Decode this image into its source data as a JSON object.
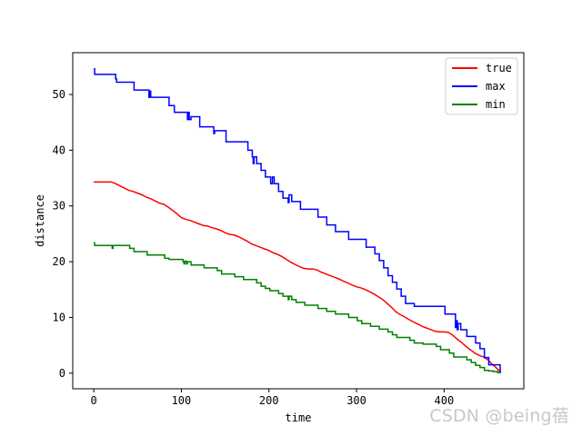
{
  "watermark": "CSDN @being蓓",
  "chart_data": {
    "type": "line",
    "xlabel": "time",
    "ylabel": "distance",
    "xlim": [
      -24,
      491
    ],
    "ylim": [
      -2.8,
      57.5
    ],
    "xticks": [
      0,
      100,
      200,
      300,
      400
    ],
    "yticks": [
      0,
      10,
      20,
      30,
      40,
      50
    ],
    "legend_position": "top-right",
    "grid": false,
    "series": [
      {
        "name": "true",
        "color": "#ff0000",
        "step": false,
        "x": [
          0,
          8,
          15,
          20,
          25,
          30,
          35,
          40,
          45,
          50,
          55,
          60,
          65,
          70,
          75,
          80,
          85,
          90,
          95,
          100,
          105,
          110,
          115,
          120,
          125,
          130,
          135,
          140,
          145,
          150,
          155,
          160,
          165,
          170,
          175,
          180,
          185,
          190,
          195,
          200,
          205,
          210,
          215,
          220,
          225,
          230,
          235,
          240,
          245,
          250,
          255,
          260,
          265,
          270,
          275,
          280,
          285,
          290,
          295,
          300,
          305,
          310,
          315,
          320,
          325,
          330,
          335,
          340,
          345,
          350,
          355,
          360,
          365,
          370,
          375,
          380,
          385,
          390,
          395,
          400,
          405,
          410,
          415,
          420,
          425,
          430,
          435,
          440,
          445,
          450,
          455,
          460,
          465
        ],
        "y": [
          34.3,
          34.3,
          34.3,
          34.3,
          34.0,
          33.6,
          33.2,
          32.8,
          32.6,
          32.3,
          32.0,
          31.6,
          31.3,
          30.9,
          30.5,
          30.3,
          29.8,
          29.2,
          28.6,
          27.9,
          27.6,
          27.4,
          27.1,
          26.8,
          26.5,
          26.4,
          26.1,
          25.9,
          25.6,
          25.2,
          24.9,
          24.8,
          24.5,
          24.1,
          23.7,
          23.2,
          22.9,
          22.6,
          22.3,
          22.0,
          21.6,
          21.3,
          20.9,
          20.4,
          19.9,
          19.5,
          19.1,
          18.8,
          18.7,
          18.7,
          18.5,
          18.1,
          17.8,
          17.5,
          17.2,
          16.9,
          16.5,
          16.2,
          15.8,
          15.5,
          15.3,
          15.0,
          14.6,
          14.2,
          13.7,
          13.2,
          12.5,
          11.8,
          11.0,
          10.5,
          10.1,
          9.6,
          9.2,
          8.8,
          8.4,
          8.1,
          7.8,
          7.5,
          7.4,
          7.4,
          7.3,
          6.8,
          6.1,
          5.5,
          4.8,
          4.2,
          3.6,
          3.2,
          2.9,
          2.4,
          1.6,
          0.9,
          0.1
        ]
      },
      {
        "name": "max",
        "color": "#0000ff",
        "step": true,
        "x": [
          0,
          1,
          24,
          25,
          26,
          46,
          62,
          63,
          64,
          65,
          66,
          80,
          86,
          92,
          106,
          107,
          108,
          109,
          111,
          121,
          136,
          137,
          138,
          151,
          166,
          176,
          181,
          182,
          183,
          186,
          191,
          196,
          201,
          202,
          204,
          206,
          211,
          216,
          221,
          222,
          223,
          226,
          231,
          236,
          241,
          256,
          266,
          276,
          291,
          306,
          311,
          321,
          326,
          331,
          336,
          341,
          346,
          351,
          356,
          361,
          366,
          371,
          381,
          386,
          401,
          411,
          413,
          414,
          415,
          416,
          419,
          426,
          431,
          436,
          441,
          446,
          451,
          456,
          461,
          464,
          465
        ],
        "y": [
          54.6,
          53.6,
          53.6,
          52.8,
          52.2,
          50.8,
          50.8,
          49.5,
          50.6,
          49.5,
          49.5,
          49.5,
          48.0,
          46.8,
          46.8,
          45.5,
          46.8,
          45.5,
          46.0,
          44.2,
          44.2,
          43.0,
          43.5,
          41.5,
          41.5,
          40.0,
          38.8,
          37.6,
          38.8,
          37.6,
          36.4,
          35.2,
          35.2,
          34.0,
          35.2,
          34.0,
          32.6,
          31.4,
          31.4,
          30.6,
          32.0,
          30.8,
          30.8,
          29.4,
          29.4,
          28.0,
          26.6,
          25.4,
          24.0,
          24.0,
          22.6,
          21.4,
          20.2,
          18.9,
          17.5,
          16.3,
          15.1,
          13.8,
          12.5,
          12.5,
          12.0,
          12.0,
          12.0,
          12.0,
          10.6,
          10.6,
          8.2,
          9.4,
          7.8,
          8.9,
          7.8,
          6.6,
          6.6,
          5.4,
          4.4,
          2.8,
          1.5,
          1.5,
          1.5,
          0.2,
          0.2
        ]
      },
      {
        "name": "min",
        "color": "#008000",
        "step": true,
        "x": [
          0,
          1,
          20,
          21,
          22,
          41,
          46,
          61,
          81,
          86,
          91,
          102,
          103,
          104,
          106,
          107,
          111,
          126,
          141,
          146,
          161,
          171,
          186,
          191,
          196,
          201,
          211,
          216,
          221,
          222,
          223,
          226,
          231,
          241,
          256,
          266,
          276,
          291,
          296,
          301,
          306,
          316,
          326,
          336,
          341,
          346,
          356,
          361,
          366,
          371,
          376,
          386,
          391,
          396,
          406,
          411,
          416,
          421,
          426,
          431,
          436,
          441,
          446,
          451,
          456,
          461,
          465
        ],
        "y": [
          23.4,
          22.9,
          22.9,
          22.4,
          22.9,
          22.4,
          21.8,
          21.2,
          20.6,
          20.4,
          20.4,
          20.0,
          19.6,
          20.1,
          19.6,
          20.0,
          19.4,
          18.9,
          18.4,
          17.8,
          17.3,
          16.8,
          16.2,
          15.6,
          15.2,
          14.8,
          14.3,
          13.8,
          13.8,
          13.2,
          13.8,
          13.2,
          12.7,
          12.2,
          11.6,
          11.1,
          10.6,
          10.0,
          10.0,
          9.4,
          8.9,
          8.4,
          7.9,
          7.4,
          6.9,
          6.4,
          6.4,
          5.9,
          5.4,
          5.4,
          5.2,
          5.2,
          4.8,
          4.2,
          3.6,
          2.9,
          2.9,
          2.9,
          2.4,
          1.9,
          1.4,
          1.0,
          0.5,
          0.4,
          0.3,
          0.1,
          0.1
        ]
      }
    ]
  }
}
